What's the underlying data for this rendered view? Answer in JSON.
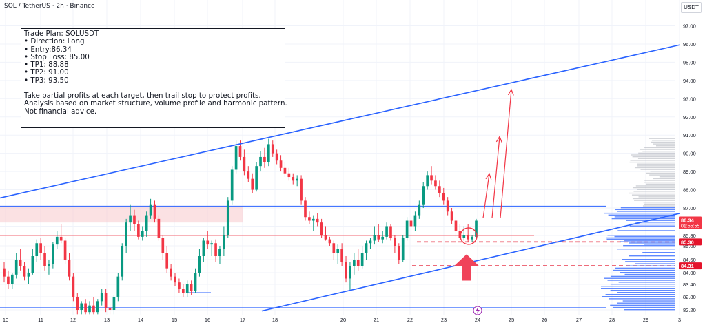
{
  "header": {
    "symbol_title": "SOL / TetherUS · 2h · Binance",
    "unit": "USDT"
  },
  "trade_plan": {
    "lines": [
      "Trade Plan: SOLUSDT",
      "• Direction: Long",
      "• Entry:86.34",
      "• Stop Loss: 85.00",
      "• TP1: 88.88",
      "• TP2: 91.00",
      "• TP3: 93.50"
    ],
    "notes": [
      "Take partial profits at each target, then trail stop to protect profits.",
      "Analysis based on market structure, volume profile and harmonic pattern.",
      "Not financial advice."
    ]
  },
  "colors": {
    "up": "#089981",
    "down": "#f23645",
    "trendline": "#2962ff",
    "arrow": "#f23645",
    "volume_profile": "#2962ff",
    "volume_profile_upper": "#b2b5be",
    "zone": "#f7c9cc"
  },
  "price_tags": {
    "current_price": "86.34",
    "countdown": "01:55:55",
    "level_1": "85.30",
    "level_2": "84.31"
  },
  "chart_data": {
    "type": "candlestick",
    "title": "",
    "x_tick_labels": [
      "10",
      "11",
      "12",
      "13",
      "14",
      "15",
      "16",
      "17",
      "18",
      "20",
      "21",
      "22",
      "23",
      "24",
      "25",
      "26",
      "27",
      "28",
      "29",
      "3"
    ],
    "y_tick_labels": [
      "97.00",
      "96.00",
      "95.00",
      "94.00",
      "93.00",
      "92.00",
      "91.00",
      "90.00",
      "89.00",
      "88.00",
      "87.00",
      "86.00",
      "85.80",
      "85.00",
      "84.60",
      "84.00",
      "83.40",
      "82.80",
      "82.20"
    ],
    "ylim": [
      82.0,
      97.5
    ],
    "candles": [
      {
        "o": 84.2,
        "h": 84.5,
        "l": 83.5,
        "c": 83.8
      },
      {
        "o": 83.8,
        "h": 84.1,
        "l": 83.2,
        "c": 83.4
      },
      {
        "o": 83.4,
        "h": 84.0,
        "l": 83.2,
        "c": 83.9
      },
      {
        "o": 83.9,
        "h": 84.8,
        "l": 83.7,
        "c": 84.6
      },
      {
        "o": 84.6,
        "h": 84.9,
        "l": 84.1,
        "c": 84.3
      },
      {
        "o": 84.3,
        "h": 84.5,
        "l": 83.6,
        "c": 83.8
      },
      {
        "o": 83.8,
        "h": 84.2,
        "l": 83.4,
        "c": 84.0
      },
      {
        "o": 84.0,
        "h": 84.9,
        "l": 83.9,
        "c": 84.7
      },
      {
        "o": 84.7,
        "h": 85.5,
        "l": 84.5,
        "c": 85.2
      },
      {
        "o": 85.2,
        "h": 85.6,
        "l": 84.6,
        "c": 84.8
      },
      {
        "o": 84.8,
        "h": 85.0,
        "l": 84.1,
        "c": 84.3
      },
      {
        "o": 84.3,
        "h": 84.6,
        "l": 83.9,
        "c": 84.4
      },
      {
        "o": 84.4,
        "h": 85.3,
        "l": 84.2,
        "c": 85.1
      },
      {
        "o": 85.1,
        "h": 85.9,
        "l": 84.9,
        "c": 85.7
      },
      {
        "o": 85.7,
        "h": 86.1,
        "l": 85.2,
        "c": 85.4
      },
      {
        "o": 85.4,
        "h": 85.6,
        "l": 84.4,
        "c": 84.6
      },
      {
        "o": 84.6,
        "h": 84.8,
        "l": 83.6,
        "c": 83.8
      },
      {
        "o": 83.8,
        "h": 84.0,
        "l": 82.6,
        "c": 82.8
      },
      {
        "o": 82.8,
        "h": 83.0,
        "l": 82.0,
        "c": 82.2
      },
      {
        "o": 82.2,
        "h": 82.6,
        "l": 82.0,
        "c": 82.5
      },
      {
        "o": 82.5,
        "h": 82.7,
        "l": 82.0,
        "c": 82.1
      },
      {
        "o": 82.1,
        "h": 82.6,
        "l": 82.0,
        "c": 82.4
      },
      {
        "o": 82.4,
        "h": 82.8,
        "l": 82.0,
        "c": 82.1
      },
      {
        "o": 82.1,
        "h": 82.7,
        "l": 82.0,
        "c": 82.6
      },
      {
        "o": 82.6,
        "h": 83.2,
        "l": 82.4,
        "c": 83.0
      },
      {
        "o": 83.0,
        "h": 83.2,
        "l": 82.1,
        "c": 82.3
      },
      {
        "o": 82.3,
        "h": 82.5,
        "l": 82.0,
        "c": 82.2
      },
      {
        "o": 82.2,
        "h": 82.9,
        "l": 82.0,
        "c": 82.8
      },
      {
        "o": 82.8,
        "h": 84.0,
        "l": 82.6,
        "c": 83.8
      },
      {
        "o": 83.8,
        "h": 85.2,
        "l": 83.6,
        "c": 85.0
      },
      {
        "o": 85.0,
        "h": 86.4,
        "l": 84.8,
        "c": 86.2
      },
      {
        "o": 86.2,
        "h": 87.2,
        "l": 85.9,
        "c": 86.6
      },
      {
        "o": 86.6,
        "h": 86.9,
        "l": 85.9,
        "c": 86.1
      },
      {
        "o": 86.1,
        "h": 86.3,
        "l": 85.5,
        "c": 85.7
      },
      {
        "o": 85.7,
        "h": 86.0,
        "l": 85.4,
        "c": 85.9
      },
      {
        "o": 85.9,
        "h": 86.8,
        "l": 85.7,
        "c": 86.6
      },
      {
        "o": 86.6,
        "h": 87.5,
        "l": 86.4,
        "c": 87.2
      },
      {
        "o": 87.2,
        "h": 87.4,
        "l": 86.2,
        "c": 86.4
      },
      {
        "o": 86.4,
        "h": 86.6,
        "l": 85.4,
        "c": 85.6
      },
      {
        "o": 85.6,
        "h": 85.8,
        "l": 84.6,
        "c": 84.8
      },
      {
        "o": 84.8,
        "h": 85.0,
        "l": 84.0,
        "c": 84.2
      },
      {
        "o": 84.2,
        "h": 84.4,
        "l": 83.6,
        "c": 83.8
      },
      {
        "o": 83.8,
        "h": 84.0,
        "l": 83.3,
        "c": 83.5
      },
      {
        "o": 83.5,
        "h": 83.7,
        "l": 83.0,
        "c": 83.2
      },
      {
        "o": 83.2,
        "h": 83.4,
        "l": 82.8,
        "c": 83.0
      },
      {
        "o": 83.0,
        "h": 83.6,
        "l": 82.8,
        "c": 83.4
      },
      {
        "o": 83.4,
        "h": 83.6,
        "l": 82.9,
        "c": 83.1
      },
      {
        "o": 83.1,
        "h": 84.2,
        "l": 83.0,
        "c": 84.0
      },
      {
        "o": 84.0,
        "h": 84.9,
        "l": 83.8,
        "c": 84.7
      },
      {
        "o": 84.7,
        "h": 85.6,
        "l": 84.5,
        "c": 85.4
      },
      {
        "o": 85.4,
        "h": 85.9,
        "l": 84.9,
        "c": 85.1
      },
      {
        "o": 85.1,
        "h": 85.4,
        "l": 84.7,
        "c": 85.2
      },
      {
        "o": 85.2,
        "h": 85.5,
        "l": 84.5,
        "c": 84.7
      },
      {
        "o": 84.7,
        "h": 85.0,
        "l": 84.4,
        "c": 84.9
      },
      {
        "o": 84.9,
        "h": 86.0,
        "l": 84.7,
        "c": 85.8
      },
      {
        "o": 85.8,
        "h": 87.6,
        "l": 85.6,
        "c": 87.4
      },
      {
        "o": 87.4,
        "h": 89.3,
        "l": 87.2,
        "c": 89.1
      },
      {
        "o": 89.1,
        "h": 90.7,
        "l": 88.9,
        "c": 90.4
      },
      {
        "o": 90.4,
        "h": 90.7,
        "l": 89.6,
        "c": 89.8
      },
      {
        "o": 89.8,
        "h": 90.2,
        "l": 88.8,
        "c": 89.0
      },
      {
        "o": 89.0,
        "h": 89.3,
        "l": 88.4,
        "c": 88.6
      },
      {
        "o": 88.6,
        "h": 88.9,
        "l": 87.8,
        "c": 88.0
      },
      {
        "o": 88.0,
        "h": 89.5,
        "l": 87.9,
        "c": 89.3
      },
      {
        "o": 89.3,
        "h": 90.1,
        "l": 89.0,
        "c": 89.8
      },
      {
        "o": 89.8,
        "h": 90.3,
        "l": 89.2,
        "c": 89.5
      },
      {
        "o": 89.5,
        "h": 90.8,
        "l": 89.3,
        "c": 90.5
      },
      {
        "o": 90.5,
        "h": 90.7,
        "l": 89.8,
        "c": 90.0
      },
      {
        "o": 90.0,
        "h": 90.2,
        "l": 89.4,
        "c": 89.6
      },
      {
        "o": 89.6,
        "h": 89.9,
        "l": 89.0,
        "c": 89.2
      },
      {
        "o": 89.2,
        "h": 89.5,
        "l": 88.7,
        "c": 88.9
      },
      {
        "o": 88.9,
        "h": 89.2,
        "l": 88.5,
        "c": 88.7
      },
      {
        "o": 88.7,
        "h": 88.9,
        "l": 88.3,
        "c": 88.5
      },
      {
        "o": 88.5,
        "h": 88.8,
        "l": 88.2,
        "c": 88.6
      },
      {
        "o": 88.6,
        "h": 88.8,
        "l": 87.2,
        "c": 87.4
      },
      {
        "o": 87.4,
        "h": 87.6,
        "l": 86.3,
        "c": 86.5
      },
      {
        "o": 86.5,
        "h": 86.8,
        "l": 86.1,
        "c": 86.3
      },
      {
        "o": 86.3,
        "h": 86.6,
        "l": 85.9,
        "c": 86.4
      },
      {
        "o": 86.4,
        "h": 86.7,
        "l": 86.0,
        "c": 86.2
      },
      {
        "o": 86.2,
        "h": 86.4,
        "l": 85.6,
        "c": 85.8
      },
      {
        "o": 85.8,
        "h": 86.0,
        "l": 85.4,
        "c": 85.5
      },
      {
        "o": 85.5,
        "h": 85.7,
        "l": 85.0,
        "c": 85.2
      },
      {
        "o": 85.2,
        "h": 85.4,
        "l": 84.6,
        "c": 84.8
      },
      {
        "o": 84.8,
        "h": 85.1,
        "l": 84.4,
        "c": 84.9
      },
      {
        "o": 84.9,
        "h": 85.2,
        "l": 84.3,
        "c": 84.5
      },
      {
        "o": 84.5,
        "h": 84.7,
        "l": 83.5,
        "c": 83.7
      },
      {
        "o": 83.7,
        "h": 84.5,
        "l": 83.1,
        "c": 84.3
      },
      {
        "o": 84.3,
        "h": 84.8,
        "l": 83.9,
        "c": 84.6
      },
      {
        "o": 84.6,
        "h": 84.9,
        "l": 84.1,
        "c": 84.3
      },
      {
        "o": 84.3,
        "h": 85.0,
        "l": 84.2,
        "c": 84.8
      },
      {
        "o": 84.8,
        "h": 85.4,
        "l": 84.6,
        "c": 85.2
      },
      {
        "o": 85.2,
        "h": 85.6,
        "l": 84.9,
        "c": 85.4
      },
      {
        "o": 85.4,
        "h": 86.0,
        "l": 85.1,
        "c": 85.8
      },
      {
        "o": 85.8,
        "h": 86.1,
        "l": 85.3,
        "c": 85.5
      },
      {
        "o": 85.5,
        "h": 85.9,
        "l": 85.2,
        "c": 85.7
      },
      {
        "o": 85.7,
        "h": 86.2,
        "l": 85.5,
        "c": 86.0
      },
      {
        "o": 86.0,
        "h": 86.1,
        "l": 85.4,
        "c": 85.6
      },
      {
        "o": 85.6,
        "h": 85.8,
        "l": 84.8,
        "c": 85.0
      },
      {
        "o": 85.0,
        "h": 85.2,
        "l": 84.4,
        "c": 84.6
      },
      {
        "o": 84.6,
        "h": 85.8,
        "l": 84.5,
        "c": 85.6
      },
      {
        "o": 85.6,
        "h": 86.5,
        "l": 85.4,
        "c": 86.3
      },
      {
        "o": 86.3,
        "h": 86.6,
        "l": 85.8,
        "c": 86.0
      },
      {
        "o": 86.0,
        "h": 86.8,
        "l": 85.9,
        "c": 86.6
      },
      {
        "o": 86.6,
        "h": 87.4,
        "l": 86.4,
        "c": 87.2
      },
      {
        "o": 87.2,
        "h": 88.4,
        "l": 87.0,
        "c": 88.2
      },
      {
        "o": 88.2,
        "h": 89.0,
        "l": 88.0,
        "c": 88.8
      },
      {
        "o": 88.8,
        "h": 89.3,
        "l": 88.3,
        "c": 88.5
      },
      {
        "o": 88.5,
        "h": 88.8,
        "l": 88.0,
        "c": 88.2
      },
      {
        "o": 88.2,
        "h": 88.5,
        "l": 87.6,
        "c": 87.8
      },
      {
        "o": 87.8,
        "h": 88.1,
        "l": 87.2,
        "c": 87.4
      },
      {
        "o": 87.4,
        "h": 87.6,
        "l": 86.6,
        "c": 86.8
      },
      {
        "o": 86.8,
        "h": 87.0,
        "l": 86.1,
        "c": 86.3
      },
      {
        "o": 86.3,
        "h": 86.5,
        "l": 85.7,
        "c": 85.9
      },
      {
        "o": 85.9,
        "h": 86.1,
        "l": 85.5,
        "c": 85.6
      },
      {
        "o": 85.6,
        "h": 86.0,
        "l": 85.4,
        "c": 85.8
      },
      {
        "o": 85.8,
        "h": 86.1,
        "l": 85.3,
        "c": 85.5
      },
      {
        "o": 85.5,
        "h": 85.8,
        "l": 85.3,
        "c": 85.7
      },
      {
        "o": 85.7,
        "h": 86.4,
        "l": 85.6,
        "c": 86.3
      }
    ],
    "annotations": {
      "upper_trendline": {
        "from": {
          "x": "9",
          "y": 87.55
        },
        "to": {
          "x": "1",
          "y": 95.95
        }
      },
      "lower_trendline": {
        "from": {
          "x": "18",
          "y": 82.15
        },
        "to": {
          "x": "2",
          "y": 86.7
        }
      },
      "resistance_zone": [
        86.2,
        87.1
      ],
      "horizontal_levels": [
        87.1,
        86.34,
        85.8,
        85.3,
        84.31,
        82.3
      ],
      "projection_targets": [
        88.88,
        91.0,
        93.5
      ]
    }
  }
}
